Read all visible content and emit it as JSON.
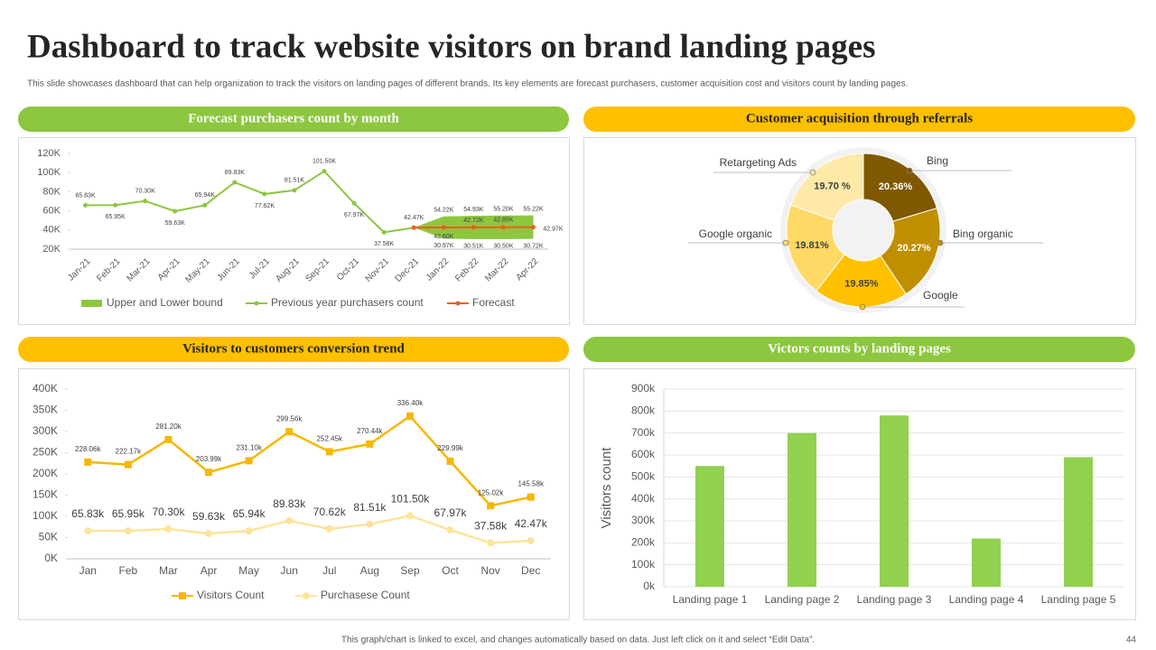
{
  "title": "Dashboard to track website visitors on brand landing pages",
  "subtitle": "This slide showcases dashboard that can help organization to track the visitors on landing pages of different brands. Its key elements are forecast purchasers, customer acquisition cost and visitors count by landing pages.",
  "footer": "This graph/chart is linked to excel,  and changes automatically based on data. Just left click on it and select “Edit Data”.",
  "page_number": 44,
  "chart_data": [
    {
      "type": "line",
      "title": "Forecast purchasers count by month",
      "header_color": "#8dc63f",
      "categories": [
        "Jan-21",
        "Feb-21",
        "Mar-21",
        "Apr-21",
        "May-21",
        "Jun-21",
        "Jul-21",
        "Aug-21",
        "Sep-21",
        "Oct-21",
        "Nov-21",
        "Dec-21",
        "Jan-22",
        "Feb-22",
        "Mar-22",
        "Apr-22"
      ],
      "ylim": [
        20000,
        120000
      ],
      "yticks": [
        {
          "value": 20000,
          "label": "20K"
        },
        {
          "value": 40000,
          "label": "40K"
        },
        {
          "value": 60000,
          "label": "60K"
        },
        {
          "value": 80000,
          "label": "80K"
        },
        {
          "value": 100000,
          "label": "100K"
        },
        {
          "value": 120000,
          "label": "120K"
        }
      ],
      "series": [
        {
          "name": "Upper and Lower bound",
          "type": "band",
          "color": "#8dc63f",
          "upper": [
            null,
            null,
            null,
            null,
            null,
            null,
            null,
            null,
            null,
            null,
            null,
            42470,
            54220,
            54930,
            55200,
            55220
          ],
          "upper_labels": [
            null,
            null,
            null,
            null,
            null,
            null,
            null,
            null,
            null,
            null,
            null,
            null,
            "54.22K",
            "54.93K",
            "55.20K",
            "55.22K"
          ],
          "lower": [
            null,
            null,
            null,
            null,
            null,
            null,
            null,
            null,
            null,
            null,
            null,
            42470,
            30970,
            30510,
            30500,
            30720
          ],
          "lower_labels": [
            null,
            null,
            null,
            null,
            null,
            null,
            null,
            null,
            null,
            null,
            null,
            null,
            "30.97K",
            "30.51K",
            "30.50K",
            "30.72K"
          ]
        },
        {
          "name": "Previous year purchasers count",
          "color": "#8dc63f",
          "marker": "circle",
          "values": [
            65830,
            65950,
            70300,
            59630,
            65940,
            89830,
            77620,
            81510,
            101500,
            67970,
            37580,
            42470,
            null,
            null,
            null,
            null
          ],
          "value_labels": [
            "65.83K",
            "65.95K",
            "70.30K",
            "59.63K",
            "65.94K",
            "89.83K",
            "77.62K",
            "81.51K",
            "101.50K",
            "67.97K",
            "37.58K",
            "42.47K",
            null,
            null,
            null,
            null
          ]
        },
        {
          "name": "Forecast",
          "color": "#e8601c",
          "marker": "circle",
          "values": [
            null,
            null,
            null,
            null,
            null,
            null,
            null,
            null,
            null,
            null,
            null,
            42470,
            42600,
            42720,
            42850,
            42970
          ],
          "value_labels": [
            null,
            null,
            null,
            null,
            null,
            null,
            null,
            null,
            null,
            null,
            null,
            null,
            "42.60K",
            "42.72K",
            "42.85K",
            "42.97K"
          ]
        }
      ]
    },
    {
      "type": "pie",
      "title": "Customer acquisition through referrals",
      "header_color": "#ffc000",
      "donut": true,
      "categories": [
        "Bing",
        "Bing organic",
        "Google",
        "Google organic",
        "Retargeting Ads"
      ],
      "values": [
        20.36,
        20.27,
        19.85,
        19.81,
        19.7
      ],
      "value_labels": [
        "20.36%",
        "20.27%",
        "19.85%",
        "19.81%",
        "19.70 %"
      ],
      "colors": [
        "#7f5800",
        "#bf8f00",
        "#ffc000",
        "#ffd966",
        "#ffe9a8"
      ]
    },
    {
      "type": "line",
      "title": "Visitors to customers conversion trend",
      "header_color": "#ffc000",
      "categories": [
        "Jan",
        "Feb",
        "Mar",
        "Apr",
        "May",
        "Jun",
        "Jul",
        "Aug",
        "Sep",
        "Oct",
        "Nov",
        "Dec"
      ],
      "ylim": [
        0,
        400000
      ],
      "yticks": [
        {
          "value": 0,
          "label": "0K"
        },
        {
          "value": 50000,
          "label": "50K"
        },
        {
          "value": 100000,
          "label": "100K"
        },
        {
          "value": 150000,
          "label": "150K"
        },
        {
          "value": 200000,
          "label": "200K"
        },
        {
          "value": 250000,
          "label": "250K"
        },
        {
          "value": 300000,
          "label": "300K"
        },
        {
          "value": 350000,
          "label": "350K"
        },
        {
          "value": 400000,
          "label": "400K"
        }
      ],
      "series": [
        {
          "name": "Visitors Count",
          "color": "#f5b800",
          "marker": "square",
          "values": [
            228060,
            222170,
            281200,
            203990,
            231100,
            299560,
            252450,
            270440,
            336400,
            229990,
            125020,
            145580
          ],
          "value_labels": [
            "228.06k",
            "222.17k",
            "281.20k",
            "203.99k",
            "231.10k",
            "299.56k",
            "252.45k",
            "270.44k",
            "336.40k",
            "229.99k",
            "125.02k",
            "145.58k"
          ]
        },
        {
          "name": "Purchasese Count",
          "color": "#fde49a",
          "marker": "circle",
          "values": [
            65830,
            65950,
            70300,
            59630,
            65940,
            89830,
            70620,
            81510,
            101500,
            67970,
            37580,
            42470
          ],
          "value_labels": [
            "65.83k",
            "65.95k",
            "70.30k",
            "59.63k",
            "65.94k",
            "89.83k",
            "70.62k",
            "81.51k",
            "101.50k",
            "67.97k",
            "37.58k",
            "42.47k"
          ]
        }
      ]
    },
    {
      "type": "bar",
      "title": "Victors counts by landing pages",
      "header_color": "#8dc63f",
      "y_label": "Visitors count",
      "categories": [
        "Landing page 1",
        "Landing page 2",
        "Landing page 3",
        "Landing page 4",
        "Landing page 5"
      ],
      "values": [
        550000,
        700000,
        780000,
        220000,
        590000
      ],
      "color": "#92d050",
      "ylim": [
        0,
        900000
      ],
      "yticks": [
        {
          "value": 0,
          "label": "0k"
        },
        {
          "value": 100000,
          "label": "100k"
        },
        {
          "value": 200000,
          "label": "200k"
        },
        {
          "value": 300000,
          "label": "300k"
        },
        {
          "value": 400000,
          "label": "400k"
        },
        {
          "value": 500000,
          "label": "500k"
        },
        {
          "value": 600000,
          "label": "600k"
        },
        {
          "value": 700000,
          "label": "700k"
        },
        {
          "value": 800000,
          "label": "800k"
        },
        {
          "value": 900000,
          "label": "900k"
        }
      ],
      "grid": true
    }
  ]
}
